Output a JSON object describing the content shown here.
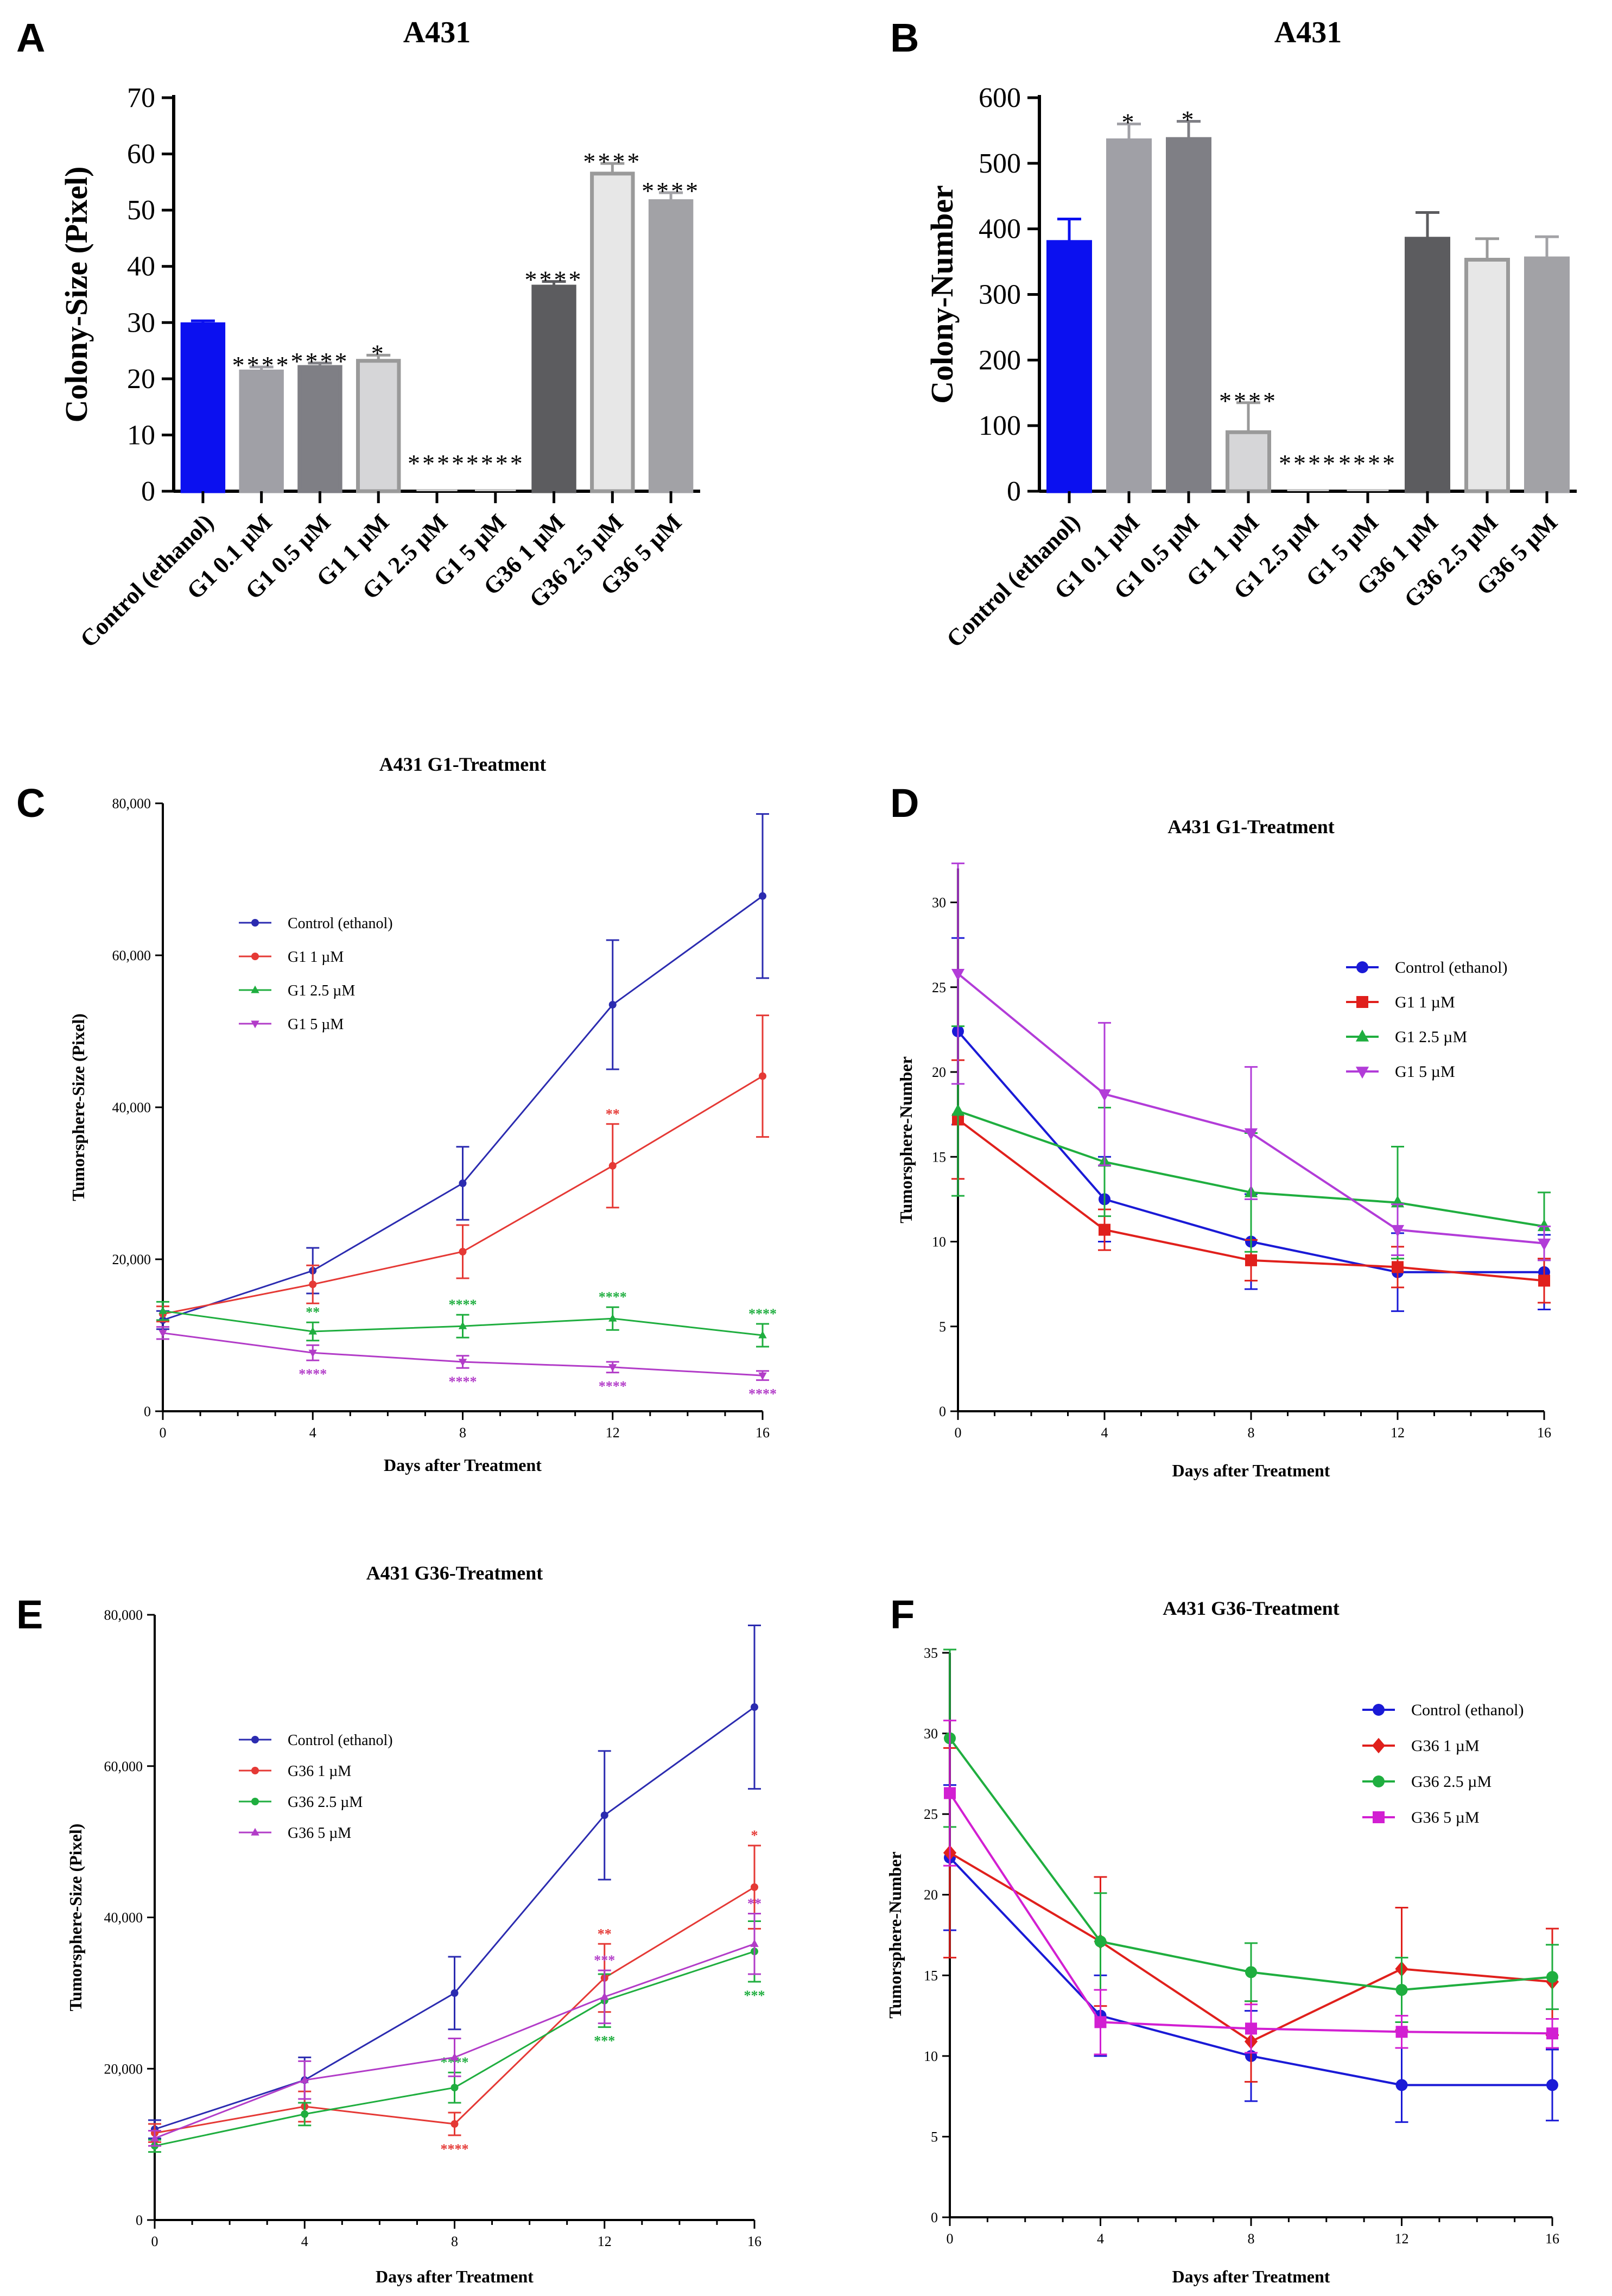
{
  "chart_data": [
    {
      "panel": "A",
      "type": "bar",
      "title": "A431",
      "ylabel": "Colony-Size (Pixel)",
      "xlabel": "",
      "categories": [
        "Control (ethanol)",
        "G1 0.1 µM",
        "G1 0.5 µM",
        "G1 1 µM",
        "G1 2.5 µM",
        "G1 5 µM",
        "G36 1 µM",
        "G36 2.5 µM",
        "G36 5 µM"
      ],
      "values": [
        29.7,
        21.3,
        22.1,
        23.2,
        0,
        0,
        36.4,
        56.5,
        51.6
      ],
      "errors": [
        0.6,
        0.8,
        0.7,
        1.0,
        0,
        0,
        0.9,
        1.8,
        1.5
      ],
      "significance": [
        "",
        "****",
        "****",
        "*",
        "****",
        "****",
        "****",
        "****",
        "****"
      ],
      "bar_colors": [
        "#0b10f0",
        "#a0a0a6",
        "#7f7f85",
        "#d6d6d8",
        "#c8c8c8",
        "#c8c8c8",
        "#5c5c5f",
        "#e7e7e7",
        "#a2a2a6"
      ],
      "ylim": [
        0,
        70
      ],
      "yticks": [
        0,
        10,
        20,
        30,
        40,
        50,
        60,
        70
      ]
    },
    {
      "panel": "B",
      "type": "bar",
      "title": "A431",
      "ylabel": "Colony-Number",
      "xlabel": "",
      "categories": [
        "Control (ethanol)",
        "G1 0.1 µM",
        "G1 0.5 µM",
        "G1 1 µM",
        "G1 2.5 µM",
        "G1 5 µM",
        "G36 1 µM",
        "G36 2.5 µM",
        "G36 5 µM"
      ],
      "values": [
        380,
        535,
        537,
        90,
        0,
        0,
        385,
        353,
        355
      ],
      "errors": [
        35,
        25,
        27,
        45,
        0,
        0,
        40,
        32,
        33
      ],
      "significance": [
        "",
        "*",
        "*",
        "****",
        "****",
        "****",
        "",
        "",
        ""
      ],
      "bar_colors": [
        "#0b10f0",
        "#a0a0a6",
        "#7f7f85",
        "#d6d6d8",
        "#c8c8c8",
        "#c8c8c8",
        "#5c5c5f",
        "#e7e7e7",
        "#a2a2a6"
      ],
      "ylim": [
        0,
        600
      ],
      "yticks": [
        0,
        100,
        200,
        300,
        400,
        500,
        600
      ]
    },
    {
      "panel": "C",
      "type": "line",
      "title": "A431  G1-Treatment",
      "xlabel": "Days after Treatment",
      "ylabel": "Tumorsphere-Size (Pixel)",
      "x": [
        0,
        4,
        8,
        12,
        16
      ],
      "xlim": [
        0,
        16
      ],
      "ylim": [
        0,
        80000
      ],
      "yticks": [
        0,
        20000,
        40000,
        60000,
        80000
      ],
      "ytick_labels": [
        "0",
        "20,000",
        "40,000",
        "60,000",
        "80,000"
      ],
      "legend_position": "upper-middle",
      "series": [
        {
          "name": "Control (ethanol)",
          "color": "#2b2bb0",
          "marker": "circle",
          "values": [
            12000,
            18500,
            30000,
            53500,
            67800
          ],
          "errors": [
            1200,
            3000,
            4800,
            8500,
            10800
          ],
          "stars": [
            "",
            "",
            "",
            "",
            ""
          ]
        },
        {
          "name": "G1 1 µM",
          "color": "#e53935",
          "marker": "circle",
          "values": [
            12800,
            16700,
            21000,
            32300,
            44100
          ],
          "errors": [
            1000,
            2500,
            3500,
            5500,
            8000
          ],
          "stars": [
            "",
            "",
            "",
            "**",
            ""
          ]
        },
        {
          "name": "G1 2.5 µM",
          "color": "#1fae3f",
          "marker": "triangle",
          "values": [
            13200,
            10500,
            11200,
            12200,
            10000
          ],
          "errors": [
            1200,
            1200,
            1500,
            1500,
            1500
          ],
          "stars": [
            "",
            "**",
            "****",
            "****",
            "****"
          ]
        },
        {
          "name": "G1 5 µM",
          "color": "#b23cc8",
          "marker": "triangle-down",
          "values": [
            10300,
            7700,
            6500,
            5800,
            4700
          ],
          "errors": [
            800,
            1000,
            800,
            700,
            600
          ],
          "stars": [
            "",
            "****",
            "****",
            "****",
            "****"
          ]
        }
      ]
    },
    {
      "panel": "D",
      "type": "line",
      "title": "A431 G1-Treatment",
      "xlabel": "Days after Treatment",
      "ylabel": "Tumorsphere-Number",
      "x": [
        0,
        4,
        8,
        12,
        16
      ],
      "xlim": [
        0,
        16
      ],
      "ylim": [
        0,
        32
      ],
      "yticks": [
        0,
        5,
        10,
        15,
        20,
        25,
        30
      ],
      "ytick_labels": [
        "0",
        "5",
        "10",
        "15",
        "20",
        "25",
        "30"
      ],
      "legend_position": "right",
      "series": [
        {
          "name": "Control (ethanol)",
          "color": "#1a1ad6",
          "marker": "circle",
          "values": [
            22.4,
            12.5,
            10.0,
            8.2,
            8.2
          ],
          "errors": [
            5.5,
            2.5,
            2.8,
            2.3,
            2.2
          ]
        },
        {
          "name": "G1 1 µM",
          "color": "#e0201c",
          "marker": "square",
          "values": [
            17.2,
            10.7,
            8.9,
            8.5,
            7.7
          ],
          "errors": [
            3.5,
            1.2,
            1.2,
            1.2,
            1.3
          ]
        },
        {
          "name": "G1 2.5 µM",
          "color": "#1fae3f",
          "marker": "triangle",
          "values": [
            17.7,
            14.7,
            12.9,
            12.3,
            10.9
          ],
          "errors": [
            5.0,
            3.2,
            3.5,
            3.3,
            2.0
          ]
        },
        {
          "name": "G1 5 µM",
          "color": "#b23cd8",
          "marker": "triangle-down",
          "values": [
            25.8,
            18.7,
            16.4,
            10.7,
            9.9
          ],
          "errors": [
            6.5,
            4.2,
            3.9,
            1.5,
            1.0
          ]
        }
      ]
    },
    {
      "panel": "E",
      "type": "line",
      "title": "A431 G36-Treatment",
      "xlabel": "Days after Treatment",
      "ylabel": "Tumorsphere-Size (Pixel)",
      "x": [
        0,
        4,
        8,
        12,
        16
      ],
      "xlim": [
        0,
        16
      ],
      "ylim": [
        0,
        80000
      ],
      "yticks": [
        0,
        20000,
        40000,
        60000,
        80000
      ],
      "ytick_labels": [
        "0",
        "20,000",
        "40,000",
        "60,000",
        "80,000"
      ],
      "legend_position": "upper-middle",
      "series": [
        {
          "name": "Control (ethanol)",
          "color": "#2b2bb0",
          "marker": "circle",
          "values": [
            12000,
            18500,
            30000,
            53500,
            67800
          ],
          "errors": [
            1200,
            3000,
            4800,
            8500,
            10800
          ],
          "stars": [
            "",
            "",
            "",
            "",
            ""
          ]
        },
        {
          "name": "G36 1 µM",
          "color": "#e53935",
          "marker": "circle",
          "values": [
            11500,
            15000,
            12700,
            32000,
            44000
          ],
          "errors": [
            1200,
            2000,
            1500,
            4500,
            5500
          ],
          "stars": [
            "",
            "",
            "****",
            "**",
            "*"
          ]
        },
        {
          "name": "G36 2.5 µM",
          "color": "#1fae3f",
          "marker": "circle",
          "values": [
            9800,
            14000,
            17500,
            29000,
            35500
          ],
          "errors": [
            800,
            1500,
            2000,
            3500,
            4000
          ],
          "stars": [
            "",
            "",
            "****",
            "***",
            "***"
          ]
        },
        {
          "name": "G36 5 µM",
          "color": "#b23cc8",
          "marker": "triangle",
          "values": [
            10800,
            18500,
            21500,
            29500,
            36500
          ],
          "errors": [
            1000,
            2500,
            2500,
            3500,
            4000
          ],
          "stars": [
            "",
            "",
            "",
            "***",
            "**"
          ]
        }
      ]
    },
    {
      "panel": "F",
      "type": "line",
      "title": "A431 G36-Treatment",
      "xlabel": "Days after Treatment",
      "ylabel": "Tumorsphere-Number",
      "x": [
        0,
        4,
        8,
        12,
        16
      ],
      "xlim": [
        0,
        16
      ],
      "ylim": [
        0,
        35
      ],
      "yticks": [
        0,
        5,
        10,
        15,
        20,
        25,
        30,
        35
      ],
      "ytick_labels": [
        "0",
        "5",
        "10",
        "15",
        "20",
        "25",
        "30",
        "35"
      ],
      "legend_position": "right",
      "series": [
        {
          "name": "Control (ethanol)",
          "color": "#1a1ad6",
          "marker": "circle",
          "values": [
            22.3,
            12.5,
            10.0,
            8.2,
            8.2
          ],
          "errors": [
            4.5,
            2.5,
            2.8,
            2.3,
            2.2
          ]
        },
        {
          "name": "G36 1 µM",
          "color": "#e0201c",
          "marker": "diamond",
          "values": [
            22.6,
            17.1,
            10.9,
            15.4,
            14.6
          ],
          "errors": [
            6.5,
            4.0,
            2.5,
            3.8,
            3.3
          ]
        },
        {
          "name": "G36 2.5 µM",
          "color": "#1fae3f",
          "marker": "circle",
          "values": [
            29.7,
            17.1,
            15.2,
            14.1,
            14.9
          ],
          "errors": [
            5.5,
            3.0,
            1.8,
            2.0,
            2.0
          ]
        },
        {
          "name": "G36 5 µM",
          "color": "#d21fd2",
          "marker": "square",
          "values": [
            26.3,
            12.1,
            11.7,
            11.5,
            11.4
          ],
          "errors": [
            4.5,
            2.0,
            1.5,
            1.0,
            0.9
          ]
        }
      ]
    }
  ]
}
